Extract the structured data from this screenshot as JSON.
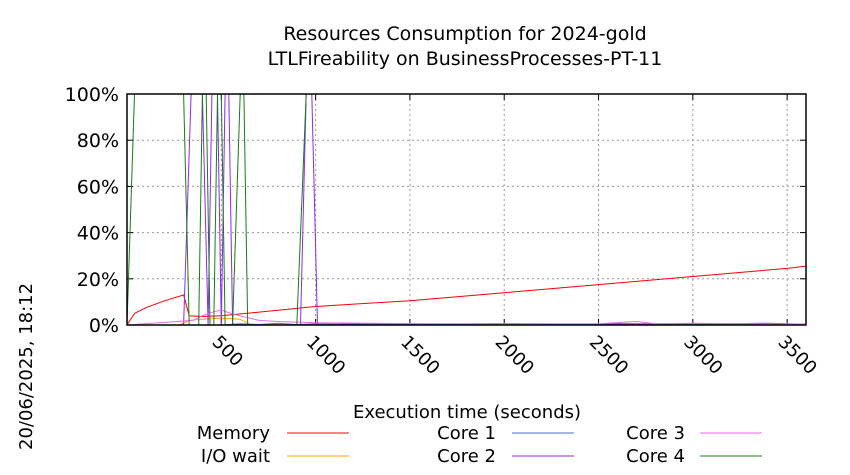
{
  "side_label": "20/06/2025, 18:12",
  "chart_data": {
    "type": "line",
    "title": "Resources Consumption for 2024-gold",
    "subtitle": "LTLFireability on BusinessProcesses-PT-11",
    "xlabel": "Execution time (seconds)",
    "ylabel": "",
    "xlim": [
      0,
      3600
    ],
    "ylim": [
      0,
      100
    ],
    "x_ticks": [
      500,
      1000,
      1500,
      2000,
      2500,
      3000,
      3500
    ],
    "x_tick_labels": [
      "500",
      "1000",
      "1500",
      "2000",
      "2500",
      "3000",
      "3500"
    ],
    "y_ticks": [
      0,
      20,
      40,
      60,
      80,
      100
    ],
    "y_tick_labels": [
      "0%",
      "20%",
      "40%",
      "60%",
      "80%",
      "100%"
    ],
    "grid": true,
    "legend": "bottom",
    "series": [
      {
        "name": "Memory",
        "color": "#ff0000",
        "points": [
          [
            0,
            0
          ],
          [
            40,
            5
          ],
          [
            100,
            7.5
          ],
          [
            200,
            10.5
          ],
          [
            300,
            13
          ],
          [
            330,
            4
          ],
          [
            400,
            3.7
          ],
          [
            500,
            4
          ],
          [
            1000,
            8
          ],
          [
            1500,
            10.5
          ],
          [
            2000,
            14
          ],
          [
            2500,
            17.5
          ],
          [
            3000,
            21
          ],
          [
            3500,
            24.5
          ],
          [
            3600,
            25.5
          ]
        ]
      },
      {
        "name": "I/O wait",
        "color": "#ffa500",
        "points": [
          [
            0,
            0
          ],
          [
            280,
            0
          ],
          [
            330,
            2
          ],
          [
            400,
            2.5
          ],
          [
            500,
            3
          ],
          [
            600,
            2.5
          ],
          [
            650,
            0.3
          ],
          [
            800,
            0.2
          ],
          [
            1000,
            0.1
          ],
          [
            3600,
            0
          ]
        ]
      },
      {
        "name": "Core 1",
        "color": "#4a72c8",
        "points": [
          [
            0,
            0
          ],
          [
            500,
            0
          ],
          [
            600,
            0.5
          ],
          [
            700,
            0.2
          ],
          [
            800,
            0.8
          ],
          [
            900,
            0.2
          ],
          [
            1000,
            0.5
          ],
          [
            1200,
            0.2
          ],
          [
            1400,
            0.6
          ],
          [
            1700,
            0.3
          ],
          [
            2000,
            0.5
          ],
          [
            2300,
            0.2
          ],
          [
            2600,
            0.6
          ],
          [
            2900,
            0.3
          ],
          [
            3200,
            0.5
          ],
          [
            3400,
            0.8
          ],
          [
            3600,
            0.3
          ]
        ]
      },
      {
        "name": "Core 2",
        "color": "#8b2be2",
        "points": [
          [
            0,
            0
          ],
          [
            300,
            0
          ],
          [
            340,
            100
          ],
          [
            400,
            100
          ],
          [
            430,
            0
          ],
          [
            450,
            100
          ],
          [
            480,
            100
          ],
          [
            500,
            0
          ],
          [
            520,
            100
          ],
          [
            540,
            100
          ],
          [
            560,
            0
          ],
          [
            920,
            0
          ],
          [
            950,
            100
          ],
          [
            980,
            100
          ],
          [
            1010,
            0
          ],
          [
            1200,
            0.5
          ],
          [
            1500,
            0.3
          ],
          [
            2000,
            0.5
          ],
          [
            2500,
            0.4
          ],
          [
            3000,
            0.6
          ],
          [
            3600,
            0.3
          ]
        ]
      },
      {
        "name": "Core 3",
        "color": "#ee66ee",
        "points": [
          [
            0,
            0
          ],
          [
            350,
            2
          ],
          [
            400,
            4
          ],
          [
            450,
            5.5
          ],
          [
            500,
            6.5
          ],
          [
            550,
            5
          ],
          [
            600,
            4
          ],
          [
            700,
            2
          ],
          [
            800,
            1.5
          ],
          [
            1000,
            1
          ],
          [
            1500,
            0.6
          ],
          [
            2000,
            0.5
          ],
          [
            2500,
            0.5
          ],
          [
            2700,
            1.5
          ],
          [
            2800,
            0.5
          ],
          [
            3000,
            0.8
          ],
          [
            3600,
            0.3
          ]
        ]
      },
      {
        "name": "Core 4",
        "color": "#1a7a1a",
        "points": [
          [
            0,
            0
          ],
          [
            40,
            100
          ],
          [
            300,
            100
          ],
          [
            330,
            0
          ],
          [
            380,
            0
          ],
          [
            400,
            100
          ],
          [
            420,
            100
          ],
          [
            440,
            0
          ],
          [
            460,
            0
          ],
          [
            480,
            100
          ],
          [
            500,
            100
          ],
          [
            520,
            0
          ],
          [
            560,
            0
          ],
          [
            600,
            100
          ],
          [
            620,
            100
          ],
          [
            640,
            0
          ],
          [
            900,
            0
          ],
          [
            950,
            100
          ],
          [
            3600,
            100
          ]
        ]
      }
    ]
  }
}
